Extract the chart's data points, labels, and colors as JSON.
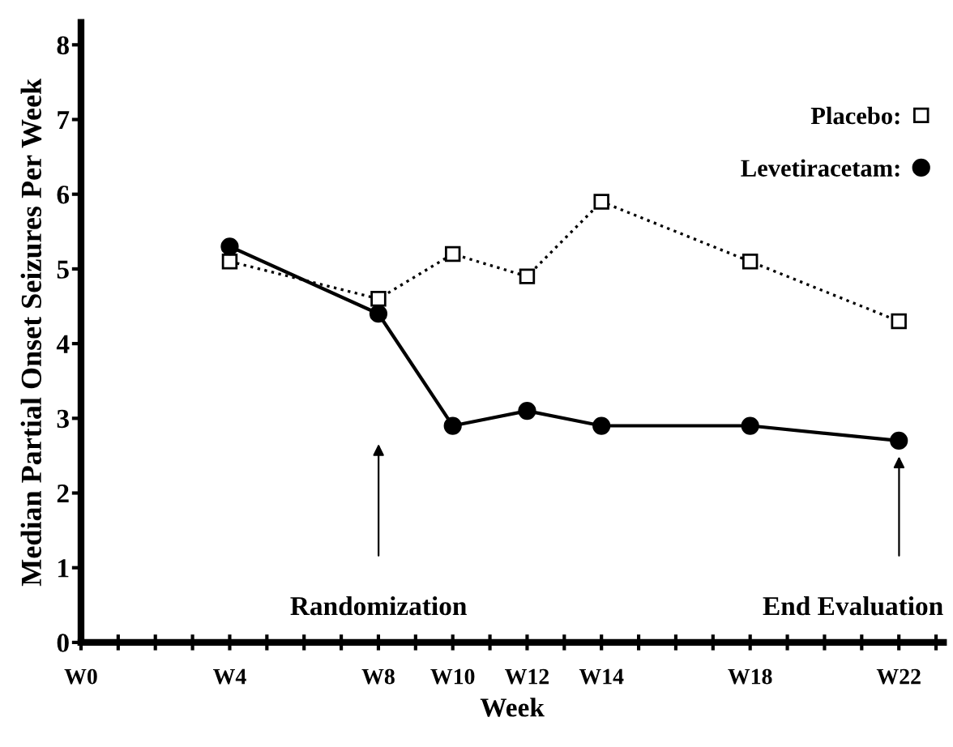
{
  "chart_data": {
    "type": "line",
    "xlabel": "Week",
    "ylabel": "Median Partial Onset Seizures Per Week",
    "categories": [
      "W0",
      null,
      null,
      null,
      "W4",
      null,
      null,
      null,
      "W8",
      null,
      "W10",
      null,
      "W12",
      null,
      "W14",
      null,
      null,
      null,
      "W18",
      null,
      null,
      null,
      "W22",
      null
    ],
    "series": [
      {
        "name": "Placebo:",
        "color": "#000000",
        "values": [
          null,
          null,
          null,
          null,
          5.1,
          null,
          null,
          null,
          4.6,
          null,
          5.2,
          null,
          4.9,
          null,
          5.9,
          null,
          null,
          null,
          5.1,
          null,
          null,
          null,
          4.3,
          null
        ],
        "marker": "square",
        "line_style": "dotted"
      },
      {
        "name": "Levetiracetam:",
        "color": "#000000",
        "values": [
          null,
          null,
          null,
          null,
          5.3,
          null,
          null,
          null,
          4.4,
          null,
          2.9,
          null,
          3.1,
          null,
          2.9,
          null,
          null,
          null,
          2.9,
          null,
          null,
          null,
          2.7,
          null
        ],
        "marker": "circle",
        "line_style": "solid"
      }
    ],
    "ylim": [
      0,
      8.3
    ],
    "yticks": [
      0,
      1,
      2,
      3,
      4,
      5,
      6,
      7,
      8
    ],
    "annotations": [
      "Randomization",
      "End Evaluation"
    ],
    "grid": false,
    "legend": "top right"
  }
}
